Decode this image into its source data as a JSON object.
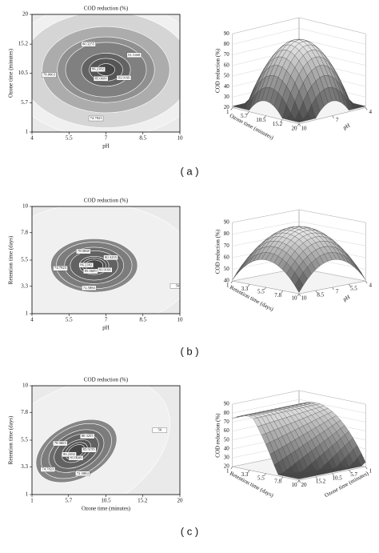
{
  "chart_data": [
    {
      "type": "contour",
      "title": "COD reduction (%)",
      "caption": "( a )",
      "x_label": "pH",
      "y_label": "Ozone time (minutes)",
      "xlim": [
        4,
        10
      ],
      "ylim": [
        1,
        20
      ],
      "xticks": [
        4,
        5.5,
        7,
        8.5,
        10
      ],
      "yticks": [
        1,
        5.7,
        10.5,
        15.2,
        20
      ],
      "levels": [
        72.5884,
        74.7823,
        78.0663,
        80.3255,
        81.5468,
        83.9166,
        85.0609,
        86.2382
      ]
    },
    {
      "type": "surface",
      "z_label": "COD reduction (%)",
      "x_label": "pH",
      "y_label": "Ozone time (minutes)",
      "zlim": [
        20,
        90
      ],
      "zticks": [
        20,
        30,
        40,
        50,
        60,
        70,
        80,
        90
      ],
      "xlim": [
        4,
        10
      ],
      "xticks": [
        4,
        7,
        10
      ],
      "ylim": [
        1,
        20
      ],
      "yticks": [
        1,
        5.7,
        10.5,
        15.2,
        20
      ]
    },
    {
      "type": "contour",
      "title": "COD reduction (%)",
      "caption": "( b )",
      "x_label": "pH",
      "y_label": "Retention time (days)",
      "xlim": [
        4,
        10
      ],
      "ylim": [
        1,
        10
      ],
      "xticks": [
        4,
        5.5,
        7,
        8.5,
        10
      ],
      "yticks": [
        1,
        3.3,
        5.5,
        7.8,
        10
      ],
      "levels": [
        50,
        72.5884,
        74.7823,
        78.0668,
        80.3255,
        83.9166,
        85.0609,
        86.2382
      ]
    },
    {
      "type": "surface",
      "z_label": "COD reduction (%)",
      "x_label": "pH",
      "y_label": "Retention time (days)",
      "zlim": [
        40,
        90
      ],
      "zticks": [
        40,
        50,
        60,
        70,
        80,
        90
      ],
      "xlim": [
        4,
        10
      ],
      "xticks": [
        4,
        5.5,
        7,
        8.5,
        10
      ],
      "ylim": [
        1,
        10
      ],
      "yticks": [
        1,
        3.3,
        5.5,
        7.8,
        10
      ]
    },
    {
      "type": "contour",
      "title": "COD reduction (%)",
      "caption": "( c )",
      "x_label": "Ozone time (minutes)",
      "y_label": "Retention time (days)",
      "xlim": [
        1,
        20
      ],
      "ylim": [
        1,
        10
      ],
      "xticks": [
        1,
        5.7,
        10.5,
        15.2,
        20
      ],
      "yticks": [
        1,
        3.3,
        5.5,
        7.8,
        10
      ],
      "levels": [
        50,
        72.5884,
        74.7823,
        78.0663,
        80.3255,
        83.5155,
        85.0609,
        86.2382
      ]
    },
    {
      "type": "surface",
      "z_label": "COD reduction (%)",
      "x_label": "Ozone time (minutes)",
      "y_label": "Retention time (days)",
      "zlim": [
        20,
        90
      ],
      "zticks": [
        20,
        30,
        40,
        50,
        60,
        70,
        80,
        90
      ],
      "xlim": [
        1,
        20
      ],
      "xticks": [
        1,
        5.7,
        10.5,
        15.2,
        20
      ],
      "ylim": [
        1,
        10
      ],
      "yticks": [
        1,
        3.3,
        5.5,
        7.8,
        10
      ]
    }
  ]
}
